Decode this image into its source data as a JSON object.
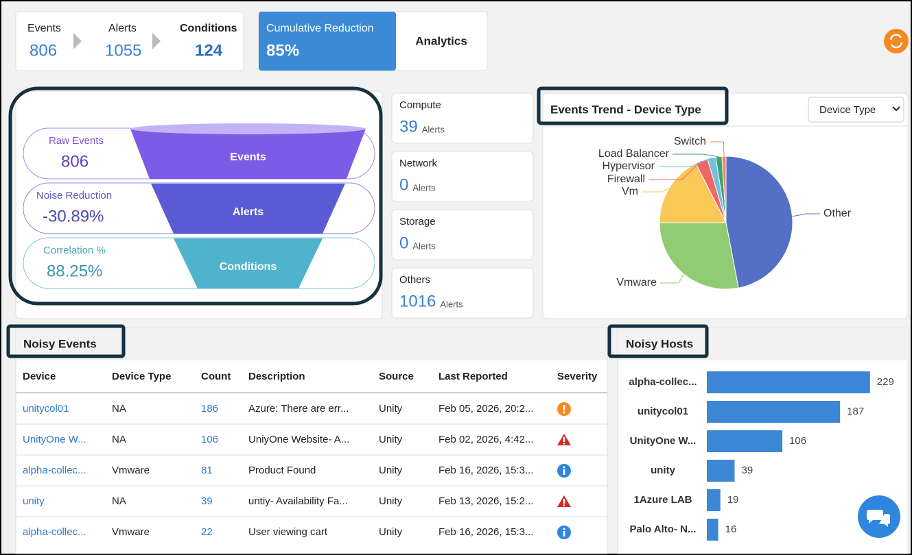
{
  "summary": {
    "events": {
      "label": "Events",
      "value": 806
    },
    "alerts": {
      "label": "Alerts",
      "value": 1055
    },
    "conditions": {
      "label": "Conditions",
      "value": 124
    },
    "cumulative": {
      "label": "Cumulative Reduction",
      "value": "85%"
    },
    "analytics": "Analytics"
  },
  "funnel": {
    "stages": [
      {
        "label": "Raw Events",
        "value": 806,
        "shape": "Events"
      },
      {
        "label": "Noise Reduction",
        "value": "-30.89%",
        "shape": "Alerts"
      },
      {
        "label": "Correlation %",
        "value": "88.25%",
        "shape": "Conditions"
      }
    ]
  },
  "cards": [
    {
      "title": "Compute",
      "value": 39,
      "unit": "Alerts"
    },
    {
      "title": "Network",
      "value": 0,
      "unit": "Alerts"
    },
    {
      "title": "Storage",
      "value": 0,
      "unit": "Alerts"
    },
    {
      "title": "Others",
      "value": 1016,
      "unit": "Alerts"
    }
  ],
  "chart_data": [
    {
      "type": "pie",
      "title": "Events Trend - Device Type",
      "control": "Device Type",
      "categories": [
        "Other",
        "Vmware",
        "Vm",
        "Firewall",
        "Hypervisor",
        "Load Balancer",
        "Switch"
      ],
      "values": [
        47,
        28,
        17.5,
        3,
        2,
        1.5,
        1
      ],
      "colors": [
        "#5470c6",
        "#91cc75",
        "#fac858",
        "#ee6666",
        "#73c0de",
        "#3ba272",
        "#fc8452"
      ]
    },
    {
      "type": "bar",
      "orientation": "horizontal",
      "title": "Noisy Hosts",
      "categories": [
        "alpha-collec...",
        "unitycol01",
        "UnityOne W...",
        "unity",
        "1Azure LAB",
        "Palo Alto- N..."
      ],
      "values": [
        229,
        187,
        106,
        39,
        19,
        16
      ],
      "color": "#3b87d6",
      "xlim": [
        0,
        235
      ]
    }
  ],
  "table": {
    "title": "Noisy Events",
    "columns": [
      "Device",
      "Device Type",
      "Count",
      "Description",
      "Source",
      "Last Reported",
      "Severity"
    ],
    "rows": [
      [
        "unitycol01",
        "NA",
        186,
        "Azure: There are err...",
        "Unity",
        "Feb 05, 2026, 20:2..."
      ],
      [
        "UnityOne W...",
        "NA",
        106,
        "UniyOne Website- A...",
        "Unity",
        "Feb 02, 2026, 4:42..."
      ],
      [
        "alpha-collec...",
        "Vmware",
        81,
        "Product Found",
        "Unity",
        "Feb 16, 2026, 15:3..."
      ],
      [
        "unity",
        "NA",
        39,
        "untiy- Availability Fa...",
        "Unity",
        "Feb 13, 2026, 15:2..."
      ],
      [
        "alpha-collec...",
        "Vmware",
        22,
        "User viewing cart",
        "Unity",
        "Feb 16, 2026, 15:3..."
      ]
    ]
  }
}
